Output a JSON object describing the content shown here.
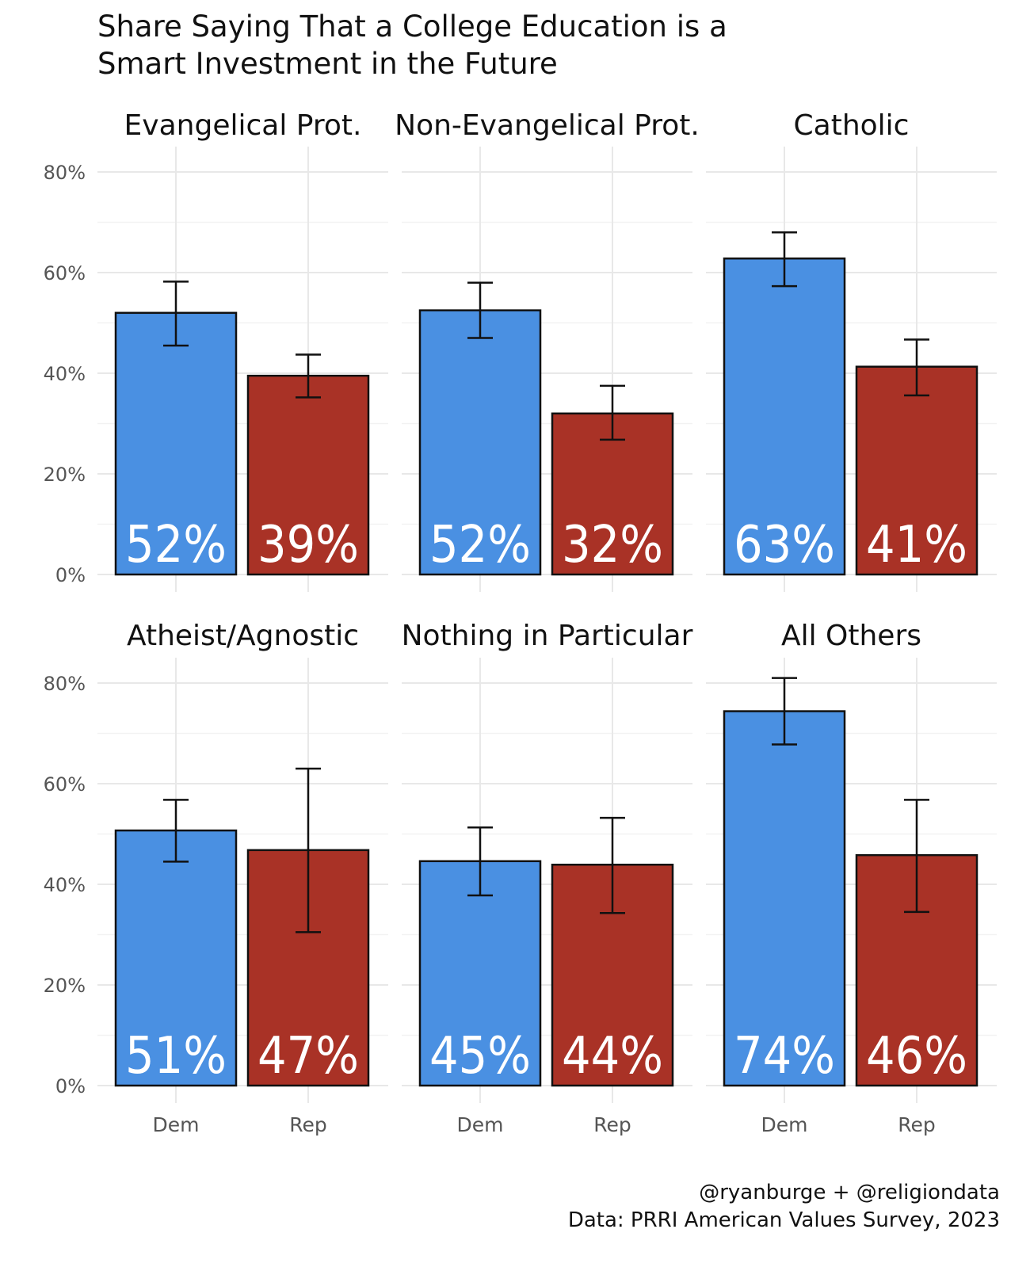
{
  "chart_data": {
    "type": "bar",
    "title": "Share Saying That a College Education is a Smart Investment in the Future",
    "title_lines": [
      "Share Saying That a College Education is a",
      "Smart Investment in the Future"
    ],
    "categories": [
      "Dem",
      "Rep"
    ],
    "ylim": [
      0,
      0.8
    ],
    "yticks": [
      0,
      0.2,
      0.4,
      0.6,
      0.8
    ],
    "ytick_labels": [
      "0%",
      "20%",
      "40%",
      "60%",
      "80%"
    ],
    "colors": {
      "Dem": "#4a90e2",
      "Rep": "#a93226"
    },
    "panels": [
      {
        "name": "Evangelical Prot.",
        "bars": [
          {
            "category": "Dem",
            "value": 0.52,
            "label": "52%",
            "lower": 0.455,
            "upper": 0.582
          },
          {
            "category": "Rep",
            "value": 0.395,
            "label": "39%",
            "lower": 0.352,
            "upper": 0.437
          }
        ]
      },
      {
        "name": "Non-Evangelical Prot.",
        "bars": [
          {
            "category": "Dem",
            "value": 0.525,
            "label": "52%",
            "lower": 0.47,
            "upper": 0.58
          },
          {
            "category": "Rep",
            "value": 0.32,
            "label": "32%",
            "lower": 0.268,
            "upper": 0.375
          }
        ]
      },
      {
        "name": "Catholic",
        "bars": [
          {
            "category": "Dem",
            "value": 0.628,
            "label": "63%",
            "lower": 0.573,
            "upper": 0.68
          },
          {
            "category": "Rep",
            "value": 0.413,
            "label": "41%",
            "lower": 0.356,
            "upper": 0.467
          }
        ]
      },
      {
        "name": "Atheist/Agnostic",
        "bars": [
          {
            "category": "Dem",
            "value": 0.507,
            "label": "51%",
            "lower": 0.445,
            "upper": 0.568
          },
          {
            "category": "Rep",
            "value": 0.468,
            "label": "47%",
            "lower": 0.305,
            "upper": 0.63
          }
        ]
      },
      {
        "name": "Nothing in Particular",
        "bars": [
          {
            "category": "Dem",
            "value": 0.446,
            "label": "45%",
            "lower": 0.378,
            "upper": 0.513
          },
          {
            "category": "Rep",
            "value": 0.439,
            "label": "44%",
            "lower": 0.343,
            "upper": 0.532
          }
        ]
      },
      {
        "name": "All Others",
        "bars": [
          {
            "category": "Dem",
            "value": 0.744,
            "label": "74%",
            "lower": 0.678,
            "upper": 0.81
          },
          {
            "category": "Rep",
            "value": 0.458,
            "label": "46%",
            "lower": 0.345,
            "upper": 0.568
          }
        ]
      }
    ],
    "caption_lines": [
      "@ryanburge + @religiondata",
      "Data: PRRI American Values Survey, 2023"
    ]
  }
}
